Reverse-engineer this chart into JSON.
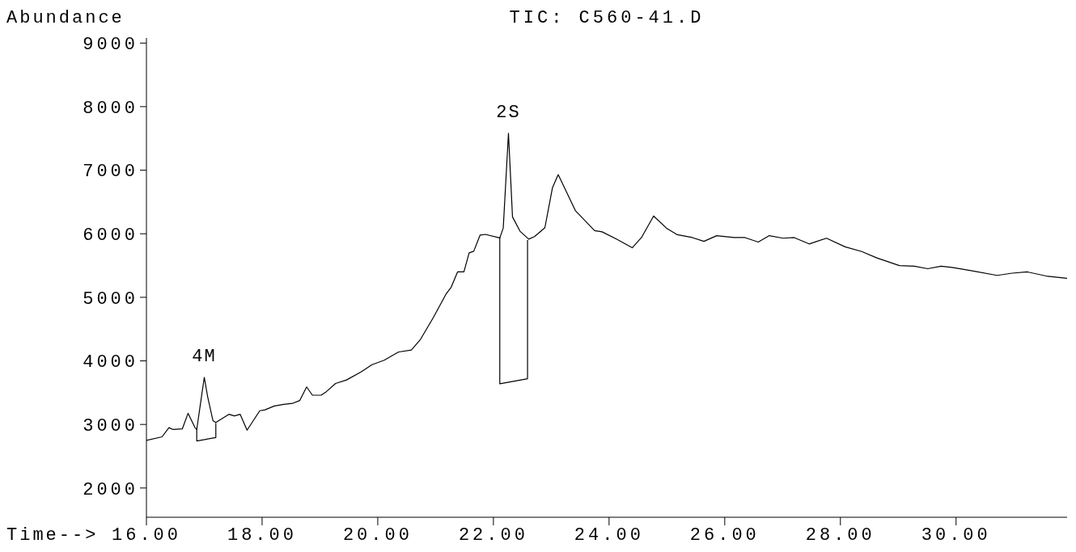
{
  "chart_data": {
    "type": "line",
    "title": "TIC: C560-41.D",
    "xlabel": "Time-->",
    "ylabel": "Abundance",
    "xlim": [
      16,
      31.92
    ],
    "xticks": [
      {
        "value": 16,
        "label": "16.00"
      },
      {
        "value": 18,
        "label": "18.00"
      },
      {
        "value": 20,
        "label": "20.00"
      },
      {
        "value": 22,
        "label": "22.00"
      },
      {
        "value": 24,
        "label": "24.00"
      },
      {
        "value": 26,
        "label": "26.00"
      },
      {
        "value": 28,
        "label": "28.00"
      },
      {
        "value": 30,
        "label": "30.00"
      }
    ],
    "ylim": [
      1540,
      9080
    ],
    "yticks": [
      2000,
      3000,
      4000,
      5000,
      6000,
      7000,
      8000,
      9000
    ],
    "grid": false,
    "annotations": [
      {
        "text": "4M",
        "x": 17.0,
        "y": 3740
      },
      {
        "text": "2S",
        "x": 22.26,
        "y": 7580
      }
    ],
    "series": [
      {
        "color": "#000000",
        "x": [
          16.0,
          16.27,
          16.39,
          16.46,
          16.62,
          16.72,
          16.84,
          16.87,
          17.0,
          17.06,
          17.15,
          17.2,
          17.43,
          17.52,
          17.62,
          17.74,
          17.96,
          18.05,
          18.21,
          18.37,
          18.52,
          18.65,
          18.77,
          18.87,
          19.02,
          19.11,
          19.27,
          19.46,
          19.71,
          19.9,
          20.11,
          20.36,
          20.58,
          20.74,
          20.96,
          21.18,
          21.27,
          21.38,
          21.49,
          21.58,
          21.66,
          21.77,
          21.86,
          22.11,
          22.17,
          22.26,
          22.33,
          22.46,
          22.61,
          22.71,
          22.89,
          23.02,
          23.12,
          23.42,
          23.75,
          23.88,
          24.14,
          24.4,
          24.56,
          24.77,
          24.99,
          25.18,
          25.44,
          25.64,
          25.86,
          26.16,
          26.35,
          26.58,
          26.77,
          27.01,
          27.2,
          27.46,
          27.76,
          28.08,
          28.37,
          28.63,
          29.02,
          29.28,
          29.51,
          29.74,
          29.93,
          30.26,
          30.71,
          30.97,
          31.23,
          31.56,
          31.92
        ],
        "values": [
          2750,
          2805,
          2950,
          2920,
          2930,
          3175,
          2950,
          2920,
          3740,
          3430,
          3060,
          3030,
          3160,
          3135,
          3160,
          2910,
          3215,
          3230,
          3290,
          3315,
          3330,
          3375,
          3590,
          3460,
          3460,
          3515,
          3645,
          3700,
          3825,
          3940,
          4010,
          4140,
          4170,
          4340,
          4680,
          5050,
          5160,
          5400,
          5400,
          5700,
          5725,
          5980,
          5990,
          5935,
          6090,
          7580,
          6265,
          6040,
          5915,
          5955,
          6095,
          6720,
          6930,
          6360,
          6050,
          6030,
          5910,
          5780,
          5940,
          6280,
          6090,
          5985,
          5940,
          5880,
          5970,
          5940,
          5940,
          5870,
          5970,
          5930,
          5940,
          5840,
          5930,
          5795,
          5720,
          5620,
          5500,
          5490,
          5450,
          5490,
          5470,
          5420,
          5345,
          5380,
          5400,
          5335,
          5300
        ]
      },
      {
        "color": "#000000",
        "x": [
          16.87,
          16.87,
          17.2,
          17.2
        ],
        "values": [
          2930,
          2740,
          2795,
          3020
        ]
      },
      {
        "color": "#000000",
        "x": [
          22.11,
          22.11,
          22.59,
          22.59
        ],
        "values": [
          5950,
          3640,
          3720,
          5900
        ]
      }
    ]
  }
}
